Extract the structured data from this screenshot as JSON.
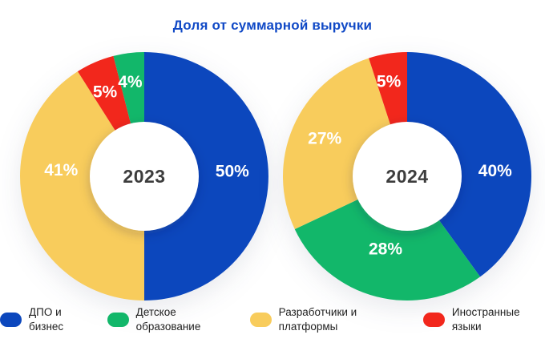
{
  "title": "Доля от суммарной выручки",
  "colors": {
    "blue": "#0C47BD",
    "green": "#12B76A",
    "yellow": "#F8CC5C",
    "red": "#F2271C",
    "title_text": "#1049C6",
    "center_text": "#3D3D3D",
    "slice_label_text": "#FFFFFF",
    "legend_text": "#1F1F1F",
    "background": "#FFFFFF"
  },
  "chart_data": [
    {
      "type": "pie",
      "donut": true,
      "center_label": "2023",
      "start_angle_deg": 0,
      "direction": "clockwise",
      "legend_position": "bottom",
      "slices": [
        {
          "name": "ДПО и бизнес",
          "value": 50,
          "label": "50%",
          "color": "blue",
          "label_angle_deg": 87,
          "label_radius": 110
        },
        {
          "name": "Разработчики и платформы",
          "value": 41,
          "label": "41%",
          "color": "yellow",
          "label_angle_deg": 274,
          "label_radius": 104
        },
        {
          "name": "Иностранные языки",
          "value": 5,
          "label": "5%",
          "color": "red",
          "label_angle_deg": 335,
          "label_radius": 116
        },
        {
          "name": "Детское образование",
          "value": 4,
          "label": "4%",
          "color": "green",
          "label_angle_deg": 351.5,
          "label_radius": 119
        }
      ]
    },
    {
      "type": "pie",
      "donut": true,
      "center_label": "2024",
      "start_angle_deg": 0,
      "direction": "clockwise",
      "legend_position": "bottom",
      "slices": [
        {
          "name": "ДПО и бизнес",
          "value": 40,
          "label": "40%",
          "color": "blue",
          "label_angle_deg": 86.5,
          "label_radius": 110
        },
        {
          "name": "Детское образование",
          "value": 28,
          "label": "28%",
          "color": "green",
          "label_angle_deg": 196.5,
          "label_radius": 95
        },
        {
          "name": "Разработчики и платформы",
          "value": 27,
          "label": "27%",
          "color": "yellow",
          "label_angle_deg": 294.5,
          "label_radius": 113
        },
        {
          "name": "Иностранные языки",
          "value": 5,
          "label": "5%",
          "color": "red",
          "label_angle_deg": 349,
          "label_radius": 120
        }
      ]
    }
  ],
  "legend": {
    "items": [
      {
        "label": "ДПО и бизнес",
        "color": "blue"
      },
      {
        "label": "Детское образование",
        "color": "green"
      },
      {
        "label": "Разработчики и платформы",
        "color": "yellow"
      },
      {
        "label": "Иностранные языки",
        "color": "red"
      }
    ]
  },
  "geometry": {
    "outer_radius": 155,
    "inner_radius": 68,
    "centers": [
      [
        180,
        220
      ],
      [
        508,
        220
      ]
    ]
  }
}
